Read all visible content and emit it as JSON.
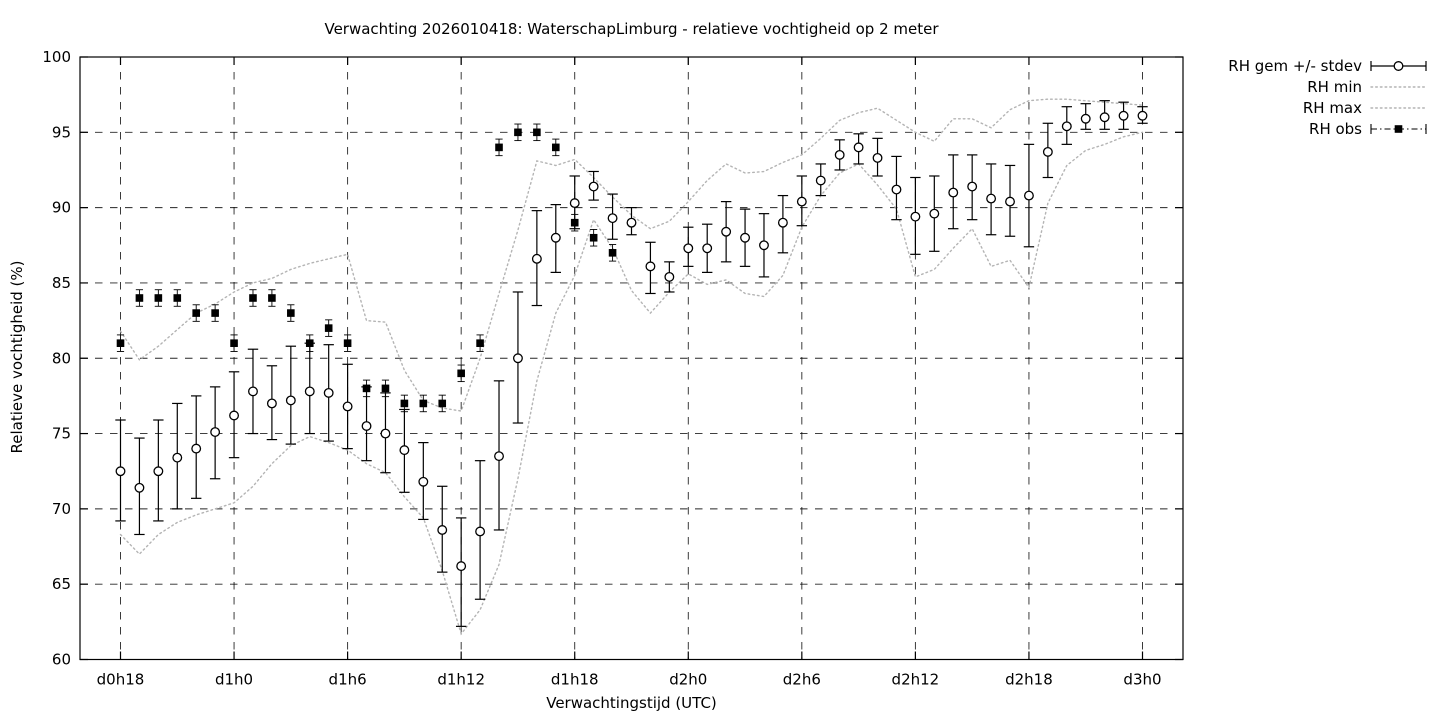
{
  "chart_data": {
    "type": "scatter",
    "title": "Verwachting 2026010418: WaterschapLimburg - relatieve vochtigheid op 2 meter",
    "xlabel": "Verwachtingstijd (UTC)",
    "ylabel": "Relatieve vochtigheid (%)",
    "ylim": [
      60,
      100
    ],
    "y_ticks": [
      60,
      65,
      70,
      75,
      80,
      85,
      90,
      95,
      100
    ],
    "x_range_hours": [
      -2.14,
      56.14
    ],
    "x_tick_hours": [
      0,
      6,
      12,
      18,
      24,
      30,
      36,
      42,
      48,
      54
    ],
    "x_tick_labels": [
      "d0h18",
      "d1h0",
      "d1h6",
      "d1h12",
      "d1h18",
      "d2h0",
      "d2h6",
      "d2h12",
      "d2h18",
      "d3h0"
    ],
    "grid": true,
    "legend_position": "outside-top-right",
    "colors": {
      "foreground": "#000000",
      "minmax_dotted": "#b4b4b4",
      "background": "#ffffff"
    },
    "legend": {
      "entries": [
        {
          "label": "RH gem +/- stdev",
          "style": "errorbar-circle"
        },
        {
          "label": "RH min",
          "style": "dotted"
        },
        {
          "label": "RH max",
          "style": "dotted"
        },
        {
          "label": "RH obs",
          "style": "errorbar-square"
        }
      ]
    },
    "series": [
      {
        "name": "RH gem",
        "marker": "open-circle",
        "hours_start": 0,
        "values": [
          72.5,
          71.4,
          72.5,
          73.4,
          74.0,
          75.1,
          76.2,
          77.8,
          77.0,
          77.2,
          77.8,
          77.7,
          76.8,
          75.5,
          75.0,
          73.9,
          71.8,
          68.6,
          66.2,
          68.5,
          73.5,
          80.0,
          86.6,
          88.0,
          90.3,
          91.4,
          89.3,
          89.0,
          86.1,
          85.4,
          87.3,
          87.3,
          88.4,
          88.0,
          87.5,
          89.0,
          90.4,
          91.8,
          93.5,
          94.0,
          93.3,
          91.2,
          89.4,
          89.6,
          91.0,
          91.4,
          90.6,
          90.4,
          90.8,
          93.7,
          95.4,
          95.9,
          96.0,
          96.1,
          96.1
        ],
        "stdev_lo": [
          69.2,
          68.3,
          69.2,
          70.0,
          70.7,
          72.0,
          73.4,
          75.0,
          74.6,
          74.3,
          75.0,
          74.5,
          74.0,
          73.2,
          72.4,
          71.1,
          69.3,
          65.8,
          62.2,
          64.0,
          68.6,
          75.7,
          83.5,
          85.7,
          88.6,
          90.5,
          87.9,
          88.2,
          84.3,
          84.4,
          86.1,
          85.7,
          86.4,
          86.1,
          85.4,
          87.0,
          88.8,
          90.8,
          92.5,
          92.9,
          92.1,
          89.2,
          86.9,
          87.1,
          88.6,
          89.2,
          88.2,
          88.1,
          87.4,
          92.0,
          94.2,
          95.2,
          95.2,
          95.2,
          95.6
        ],
        "stdev_hi": [
          75.9,
          74.7,
          75.9,
          77.0,
          77.5,
          78.1,
          79.1,
          80.6,
          79.5,
          80.8,
          81.0,
          80.9,
          79.6,
          78.1,
          77.7,
          76.6,
          74.4,
          71.5,
          69.4,
          73.2,
          78.5,
          84.4,
          89.8,
          90.2,
          92.1,
          92.4,
          90.9,
          90.0,
          87.7,
          86.4,
          88.7,
          88.9,
          90.4,
          89.9,
          89.6,
          90.8,
          92.1,
          92.9,
          94.5,
          94.9,
          94.6,
          93.4,
          92.0,
          92.1,
          93.5,
          93.5,
          92.9,
          92.8,
          94.2,
          95.6,
          96.7,
          96.9,
          97.1,
          97.0,
          96.7
        ]
      },
      {
        "name": "RH min",
        "marker": "none",
        "hours_start": 0,
        "values": [
          68.3,
          67.0,
          68.3,
          69.1,
          69.6,
          70.0,
          70.4,
          71.5,
          73.0,
          74.2,
          74.8,
          74.4,
          73.9,
          73.0,
          72.4,
          70.8,
          69.4,
          65.9,
          61.7,
          63.3,
          66.3,
          72.0,
          78.5,
          83.0,
          85.5,
          89.2,
          87.3,
          84.5,
          83.0,
          84.4,
          85.6,
          84.9,
          85.2,
          84.3,
          84.1,
          85.5,
          88.7,
          90.8,
          92.3,
          92.9,
          91.5,
          89.9,
          85.4,
          85.9,
          87.3,
          88.6,
          86.1,
          86.5,
          84.7,
          90.3,
          92.8,
          93.8,
          94.2,
          94.7,
          95.0
        ]
      },
      {
        "name": "RH max",
        "marker": "none",
        "hours_start": 0,
        "values": [
          81.8,
          79.9,
          80.8,
          81.9,
          83.0,
          83.6,
          84.4,
          85.0,
          85.3,
          85.9,
          86.3,
          86.6,
          86.9,
          82.5,
          82.4,
          79.2,
          77.2,
          76.7,
          76.5,
          80.0,
          84.3,
          88.5,
          93.1,
          92.8,
          93.2,
          92.0,
          90.7,
          89.5,
          88.6,
          89.1,
          90.4,
          91.8,
          92.9,
          92.3,
          92.4,
          93.0,
          93.5,
          94.6,
          95.8,
          96.3,
          96.6,
          95.8,
          95.0,
          94.4,
          95.9,
          95.9,
          95.3,
          96.5,
          97.1,
          97.2,
          97.2,
          97.1,
          97.0,
          96.9,
          96.8
        ]
      },
      {
        "name": "RH obs",
        "marker": "filled-square",
        "hours_start": 0,
        "obs_stdev": 0.55,
        "values": [
          81,
          84,
          84,
          84,
          83,
          83,
          81,
          84,
          84,
          83,
          81,
          82,
          81,
          78,
          78,
          77,
          77,
          77,
          79,
          81,
          94,
          95,
          95,
          94,
          89,
          88,
          87
        ]
      }
    ]
  }
}
